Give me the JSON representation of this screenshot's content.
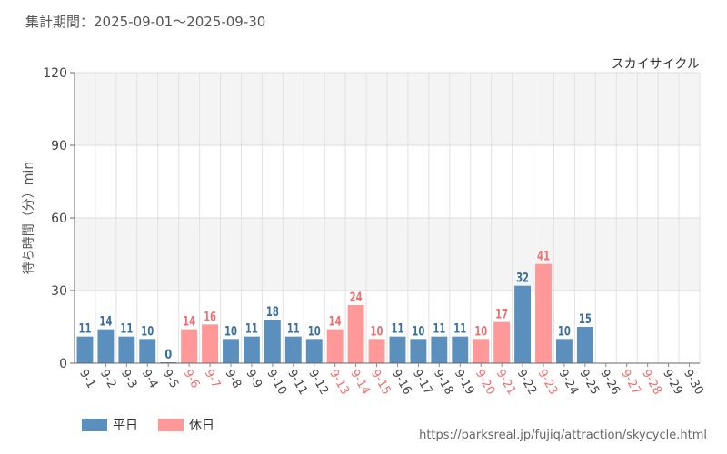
{
  "header": {
    "period": "集計期間：2025-09-01～2025-09-30"
  },
  "footer": {
    "url": "https://parksreal.jp/fujiq/attraction/skycycle.html"
  },
  "colors": {
    "weekday": "#5b8fbd",
    "holiday": "#ff9999",
    "weekday_text": "#3b6f9e",
    "holiday_text": "#f07070"
  },
  "chart_data": {
    "type": "bar",
    "title": "スカイサイクル",
    "ylabel": "待ち時間（分）min",
    "xlabel": "",
    "ylim": [
      0,
      120
    ],
    "yticks": [
      0,
      30,
      60,
      90,
      120
    ],
    "grid": true,
    "legend": [
      {
        "label": "平日",
        "key": "weekday"
      },
      {
        "label": "休日",
        "key": "holiday"
      }
    ],
    "categories": [
      "9-1",
      "9-2",
      "9-3",
      "9-4",
      "9-5",
      "9-6",
      "9-7",
      "9-8",
      "9-9",
      "9-10",
      "9-11",
      "9-12",
      "9-13",
      "9-14",
      "9-15",
      "9-16",
      "9-17",
      "9-18",
      "9-19",
      "9-20",
      "9-21",
      "9-22",
      "9-23",
      "9-24",
      "9-25",
      "9-26",
      "9-27",
      "9-28",
      "9-29",
      "9-30"
    ],
    "values": [
      11,
      14,
      11,
      10,
      0,
      14,
      16,
      10,
      11,
      18,
      11,
      10,
      14,
      24,
      10,
      11,
      10,
      11,
      11,
      10,
      17,
      32,
      41,
      10,
      15,
      null,
      null,
      null,
      null,
      null
    ],
    "day_type": [
      "weekday",
      "weekday",
      "weekday",
      "weekday",
      "weekday",
      "holiday",
      "holiday",
      "weekday",
      "weekday",
      "weekday",
      "weekday",
      "weekday",
      "holiday",
      "holiday",
      "holiday",
      "weekday",
      "weekday",
      "weekday",
      "weekday",
      "holiday",
      "holiday",
      "weekday",
      "holiday",
      "weekday",
      "weekday",
      "weekday",
      "holiday",
      "holiday",
      "weekday",
      "weekday"
    ]
  }
}
